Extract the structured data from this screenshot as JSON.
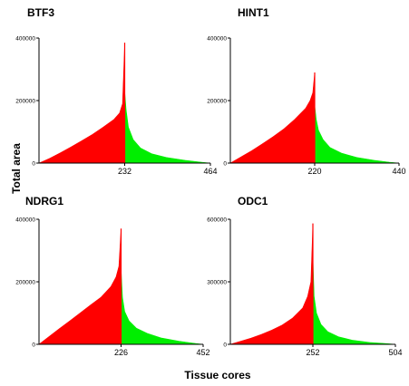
{
  "figure": {
    "ylabel": "Total area",
    "xlabel": "Tissue cores"
  },
  "chart_data": [
    {
      "type": "area",
      "title": "BTF3",
      "xlim": [
        0,
        464
      ],
      "ylim": [
        0,
        400000
      ],
      "xticks": [
        "232",
        "464"
      ],
      "yticks": [
        "0",
        "200000",
        "400000"
      ],
      "center": 232,
      "peak": 385000,
      "series": [
        {
          "color": "#ff0000",
          "x": [
            0,
            29,
            58,
            87,
            116,
            145,
            174,
            203,
            218,
            226,
            232
          ],
          "y": [
            0,
            15000,
            33000,
            52000,
            72000,
            92000,
            115000,
            140000,
            160000,
            190000,
            385000
          ]
        },
        {
          "color": "#00ee00",
          "x": [
            232,
            236,
            242,
            255,
            275,
            305,
            345,
            395,
            440,
            464
          ],
          "y": [
            230000,
            170000,
            115000,
            75000,
            48000,
            30000,
            18000,
            9000,
            3000,
            0
          ]
        }
      ]
    },
    {
      "type": "area",
      "title": "HINT1",
      "xlim": [
        0,
        440
      ],
      "ylim": [
        0,
        400000
      ],
      "xticks": [
        "220",
        "440"
      ],
      "yticks": [
        "0",
        "200000",
        "400000"
      ],
      "center": 220,
      "peak": 290000,
      "series": [
        {
          "color": "#ff0000",
          "x": [
            0,
            28,
            56,
            84,
            112,
            140,
            168,
            196,
            208,
            215,
            220
          ],
          "y": [
            0,
            20000,
            40000,
            62000,
            85000,
            110000,
            140000,
            175000,
            200000,
            225000,
            290000
          ]
        },
        {
          "color": "#00ee00",
          "x": [
            220,
            224,
            230,
            242,
            260,
            290,
            330,
            375,
            415,
            440
          ],
          "y": [
            185000,
            140000,
            105000,
            75000,
            50000,
            32000,
            18000,
            9000,
            3000,
            0
          ]
        }
      ]
    },
    {
      "type": "area",
      "title": "NDRG1",
      "xlim": [
        0,
        452
      ],
      "ylim": [
        0,
        400000
      ],
      "xticks": [
        "226",
        "452"
      ],
      "yticks": [
        "0",
        "200000",
        "400000"
      ],
      "center": 226,
      "peak": 370000,
      "series": [
        {
          "color": "#ff0000",
          "x": [
            0,
            28,
            56,
            85,
            113,
            141,
            170,
            198,
            212,
            220,
            226
          ],
          "y": [
            0,
            25000,
            50000,
            75000,
            100000,
            125000,
            150000,
            185000,
            215000,
            250000,
            370000
          ]
        },
        {
          "color": "#00ee00",
          "x": [
            226,
            230,
            236,
            248,
            268,
            298,
            338,
            385,
            430,
            452
          ],
          "y": [
            240000,
            150000,
            105000,
            75000,
            52000,
            35000,
            20000,
            10000,
            3000,
            0
          ]
        }
      ]
    },
    {
      "type": "area",
      "title": "ODC1",
      "xlim": [
        0,
        504
      ],
      "ylim": [
        0,
        600000
      ],
      "xticks": [
        "252",
        "504"
      ],
      "yticks": [
        "0",
        "300000",
        "600000"
      ],
      "center": 252,
      "peak": 580000,
      "series": [
        {
          "color": "#ff0000",
          "x": [
            0,
            32,
            63,
            95,
            126,
            158,
            189,
            221,
            236,
            246,
            252
          ],
          "y": [
            0,
            15000,
            30000,
            48000,
            68000,
            92000,
            125000,
            175000,
            230000,
            300000,
            580000
          ]
        },
        {
          "color": "#00ee00",
          "x": [
            252,
            256,
            263,
            277,
            298,
            330,
            372,
            425,
            480,
            504
          ],
          "y": [
            420000,
            230000,
            150000,
            95000,
            60000,
            36000,
            20000,
            9000,
            3000,
            0
          ]
        }
      ]
    }
  ]
}
